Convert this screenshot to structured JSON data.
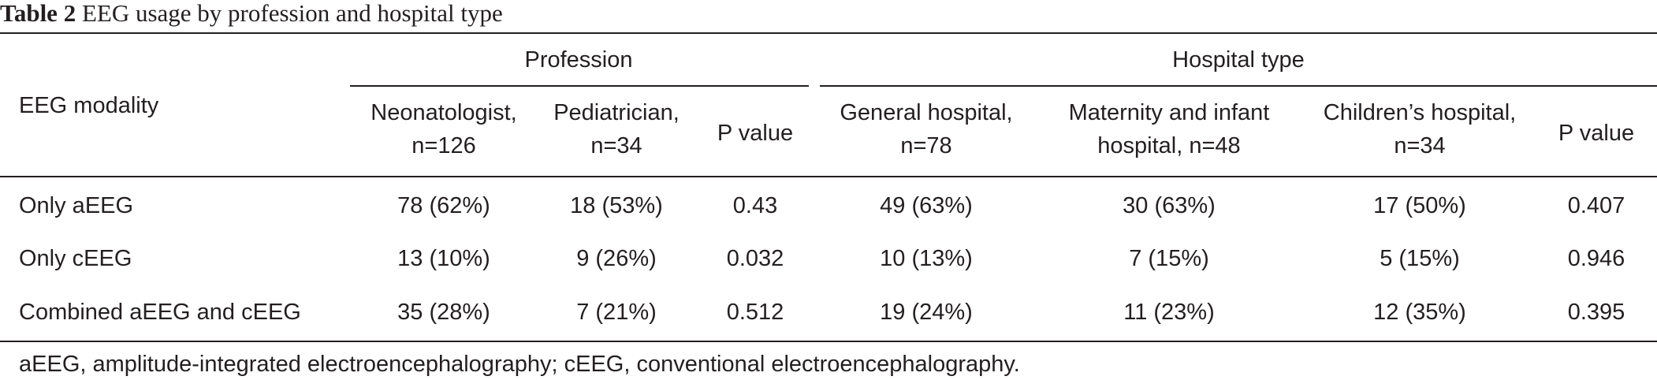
{
  "caption": {
    "label": "Table 2",
    "text": "EEG usage by profession and hospital type"
  },
  "table": {
    "row_header": "EEG modality",
    "groups": [
      {
        "label": "Profession"
      },
      {
        "label": "Hospital type"
      }
    ],
    "columns": [
      {
        "line1": "Neonatologist,",
        "line2": "n=126"
      },
      {
        "line1": "Pediatrician,",
        "line2": "n=34"
      },
      {
        "line1": "P value",
        "line2": ""
      },
      {
        "line1": "General hospital,",
        "line2": "n=78"
      },
      {
        "line1": "Maternity and infant",
        "line2": "hospital, n=48"
      },
      {
        "line1": "Children’s hospital,",
        "line2": "n=34"
      },
      {
        "line1": "P value",
        "line2": ""
      }
    ],
    "rows": [
      {
        "label": "Only aEEG",
        "cells": [
          "78 (62%)",
          "18 (53%)",
          "0.43",
          "49 (63%)",
          "30 (63%)",
          "17 (50%)",
          "0.407"
        ]
      },
      {
        "label": "Only cEEG",
        "cells": [
          "13 (10%)",
          "9 (26%)",
          "0.032",
          "10 (13%)",
          "7 (15%)",
          "5 (15%)",
          "0.946"
        ]
      },
      {
        "label": "Combined aEEG and cEEG",
        "cells": [
          "35 (28%)",
          "7 (21%)",
          "0.512",
          "19 (24%)",
          "11 (23%)",
          "12 (35%)",
          "0.395"
        ]
      }
    ]
  },
  "footnote": "aEEG, amplitude-integrated electroencephalography; cEEG, conventional electroencephalography."
}
